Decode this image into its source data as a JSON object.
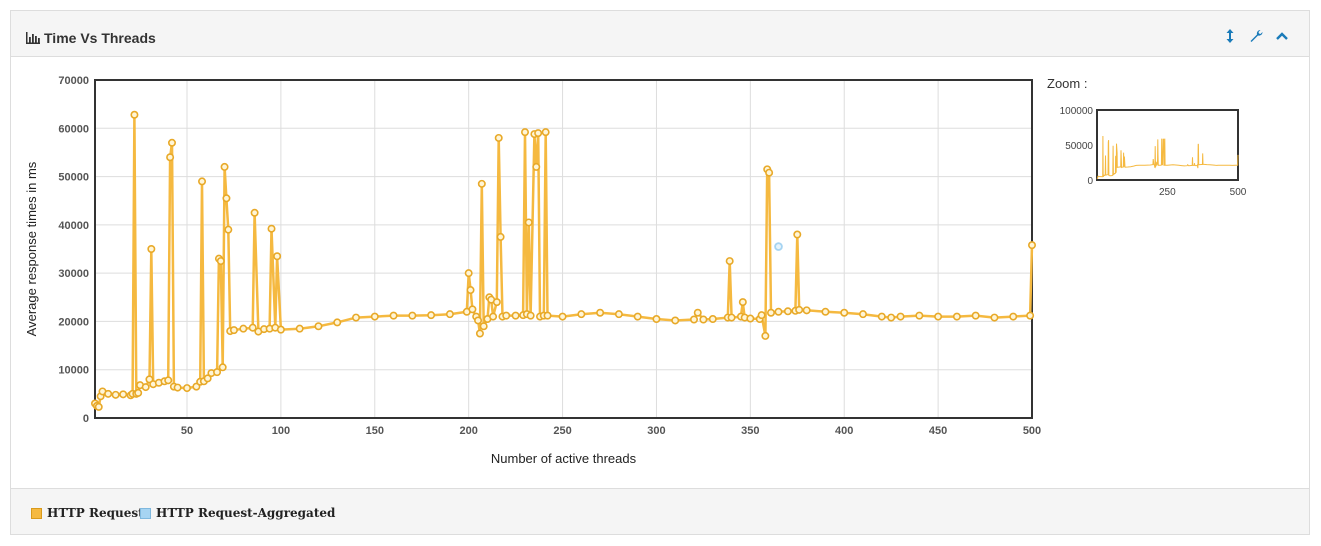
{
  "panel": {
    "title": "Time Vs Threads",
    "tools": [
      "vertical-resize-icon",
      "wrench-icon",
      "chevron-up-icon"
    ]
  },
  "zoom": {
    "label": "Zoom :"
  },
  "legend": [
    {
      "label": "HTTP Request",
      "color": "#f5b940"
    },
    {
      "label": "HTTP Request-Aggregated",
      "color": "#a6d4f2"
    }
  ],
  "chart_data": [
    {
      "type": "line",
      "title": "",
      "xlabel": "Number of active threads",
      "ylabel": "Average response times in ms",
      "xlim": [
        1,
        500
      ],
      "ylim": [
        0,
        70000
      ],
      "x_ticks": [
        50,
        100,
        150,
        200,
        250,
        300,
        350,
        400,
        450,
        500
      ],
      "y_ticks": [
        0,
        10000,
        20000,
        30000,
        40000,
        50000,
        60000,
        70000
      ],
      "grid": true,
      "series": [
        {
          "name": "HTTP Request",
          "color": "#f5b940",
          "points": [
            [
              1,
              3000
            ],
            [
              2,
              2500
            ],
            [
              3,
              2300
            ],
            [
              4,
              4500
            ],
            [
              5,
              5500
            ],
            [
              8,
              5000
            ],
            [
              12,
              4800
            ],
            [
              16,
              4900
            ],
            [
              20,
              4700
            ],
            [
              21,
              5000
            ],
            [
              22,
              62800
            ],
            [
              23,
              5000
            ],
            [
              24,
              5200
            ],
            [
              25,
              6800
            ],
            [
              28,
              6400
            ],
            [
              30,
              8000
            ],
            [
              31,
              35000
            ],
            [
              32,
              7000
            ],
            [
              35,
              7300
            ],
            [
              38,
              7600
            ],
            [
              40,
              7800
            ],
            [
              41,
              54000
            ],
            [
              42,
              57000
            ],
            [
              43,
              6500
            ],
            [
              45,
              6300
            ],
            [
              50,
              6200
            ],
            [
              55,
              6500
            ],
            [
              57,
              7500
            ],
            [
              58,
              49000
            ],
            [
              59,
              7600
            ],
            [
              61,
              8200
            ],
            [
              63,
              9300
            ],
            [
              66,
              9500
            ],
            [
              67,
              33000
            ],
            [
              68,
              32500
            ],
            [
              69,
              10500
            ],
            [
              70,
              52000
            ],
            [
              71,
              45500
            ],
            [
              72,
              39000
            ],
            [
              73,
              18000
            ],
            [
              75,
              18200
            ],
            [
              80,
              18500
            ],
            [
              85,
              18700
            ],
            [
              86,
              42500
            ],
            [
              88,
              17900
            ],
            [
              91,
              18400
            ],
            [
              94,
              18500
            ],
            [
              95,
              39200
            ],
            [
              97,
              18700
            ],
            [
              98,
              33500
            ],
            [
              100,
              18300
            ],
            [
              110,
              18500
            ],
            [
              120,
              19000
            ],
            [
              130,
              19800
            ],
            [
              140,
              20800
            ],
            [
              150,
              21000
            ],
            [
              160,
              21200
            ],
            [
              170,
              21200
            ],
            [
              180,
              21300
            ],
            [
              190,
              21500
            ],
            [
              199,
              22000
            ],
            [
              200,
              30000
            ],
            [
              201,
              26500
            ],
            [
              202,
              22500
            ],
            [
              204,
              21000
            ],
            [
              205,
              20200
            ],
            [
              206,
              17500
            ],
            [
              207,
              48500
            ],
            [
              208,
              19000
            ],
            [
              210,
              20500
            ],
            [
              211,
              25000
            ],
            [
              212,
              24500
            ],
            [
              213,
              21000
            ],
            [
              215,
              24000
            ],
            [
              216,
              58000
            ],
            [
              217,
              37500
            ],
            [
              218,
              21000
            ],
            [
              220,
              21200
            ],
            [
              225,
              21200
            ],
            [
              229,
              21300
            ],
            [
              230,
              59200
            ],
            [
              231,
              21500
            ],
            [
              232,
              40500
            ],
            [
              233,
              21200
            ],
            [
              235,
              58800
            ],
            [
              236,
              52000
            ],
            [
              237,
              59000
            ],
            [
              238,
              21000
            ],
            [
              240,
              21200
            ],
            [
              241,
              59200
            ],
            [
              242,
              21200
            ],
            [
              250,
              21000
            ],
            [
              260,
              21500
            ],
            [
              270,
              21800
            ],
            [
              280,
              21500
            ],
            [
              290,
              21000
            ],
            [
              300,
              20500
            ],
            [
              310,
              20200
            ],
            [
              320,
              20400
            ],
            [
              322,
              21800
            ],
            [
              325,
              20400
            ],
            [
              330,
              20500
            ],
            [
              338,
              20800
            ],
            [
              339,
              32500
            ],
            [
              340,
              20800
            ],
            [
              345,
              21000
            ],
            [
              346,
              24000
            ],
            [
              347,
              20800
            ],
            [
              350,
              20600
            ],
            [
              355,
              20500
            ],
            [
              356,
              21300
            ],
            [
              358,
              17000
            ],
            [
              359,
              51500
            ],
            [
              360,
              50800
            ],
            [
              361,
              21800
            ],
            [
              365,
              22000
            ],
            [
              370,
              22100
            ],
            [
              374,
              22200
            ],
            [
              375,
              38000
            ],
            [
              376,
              22400
            ],
            [
              380,
              22300
            ],
            [
              390,
              22000
            ],
            [
              400,
              21800
            ],
            [
              410,
              21500
            ],
            [
              420,
              21000
            ],
            [
              425,
              20800
            ],
            [
              430,
              21000
            ],
            [
              440,
              21200
            ],
            [
              450,
              21000
            ],
            [
              460,
              21000
            ],
            [
              470,
              21200
            ],
            [
              480,
              20800
            ],
            [
              490,
              21000
            ],
            [
              499,
              21200
            ],
            [
              500,
              35800
            ]
          ]
        },
        {
          "name": "HTTP Request-Aggregated",
          "color": "#a6d4f2",
          "points": [
            [
              365,
              35500
            ]
          ]
        }
      ]
    },
    {
      "type": "line",
      "title": "",
      "xlim": [
        1,
        500
      ],
      "ylim": [
        0,
        100000
      ],
      "x_ticks": [
        250,
        500
      ],
      "y_ticks": [
        0,
        50000,
        100000
      ],
      "series_ref": "HTTP Request"
    }
  ]
}
